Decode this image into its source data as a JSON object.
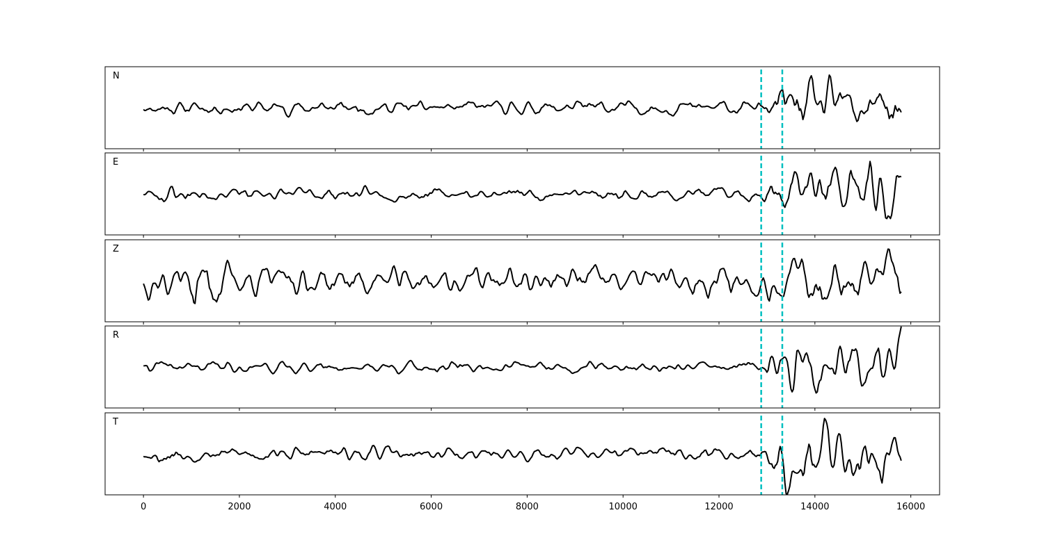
{
  "chart_data": {
    "type": "line",
    "xlim": [
      -800,
      16600
    ],
    "x_ticks": [
      0,
      2000,
      4000,
      6000,
      8000,
      10000,
      12000,
      14000,
      16000
    ],
    "x_tick_labels": [
      "0",
      "2000",
      "4000",
      "6000",
      "8000",
      "10000",
      "12000",
      "14000",
      "16000"
    ],
    "x_range": [
      0,
      15800
    ],
    "sample_step": 25,
    "ylim": [
      -1.2,
      1.2
    ],
    "grid": false,
    "shared_x": true,
    "trace_color": "#000000",
    "marker_color": "#00bfc0",
    "markers": [
      12880,
      13320
    ],
    "signal_onset": 12880,
    "panels": [
      {
        "label": "N",
        "seed": 11,
        "pre_amp": 0.17,
        "post_amp": 0.66,
        "early_amp": 0.0,
        "early_end": 0
      },
      {
        "label": "E",
        "seed": 23,
        "pre_amp": 0.15,
        "post_amp": 0.78,
        "early_amp": 0.12,
        "early_end": 1600
      },
      {
        "label": "Z",
        "seed": 37,
        "pre_amp": 0.34,
        "post_amp": 0.58,
        "early_amp": 0.42,
        "early_end": 2600
      },
      {
        "label": "R",
        "seed": 41,
        "pre_amp": 0.15,
        "post_amp": 0.74,
        "early_amp": 0.0,
        "early_end": 0
      },
      {
        "label": "T",
        "seed": 53,
        "pre_amp": 0.17,
        "post_amp": 0.74,
        "early_amp": 0.08,
        "early_end": 1200
      }
    ]
  }
}
